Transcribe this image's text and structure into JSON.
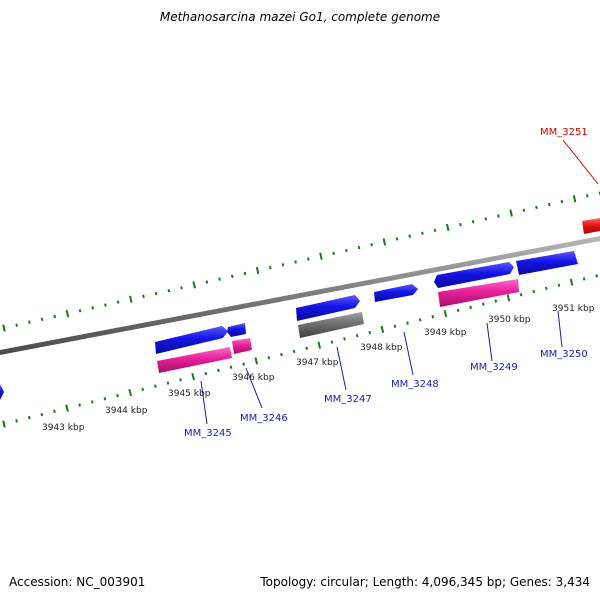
{
  "title": "Methanosarcina mazei Go1, complete genome",
  "footer": {
    "accession": "Accession: NC_003901",
    "summary": "Topology: circular; Length: 4,096,345 bp; Genes: 3,434"
  },
  "colors": {
    "backbone": "#8a8a8a",
    "tick": "#1a7a1a",
    "gene_blue": "#1414e6",
    "gene_pink": "#e8209a",
    "gene_gray": "#6e6e6e",
    "gene_red": "#e81414",
    "label_blue": "#1a1ab4",
    "label_red": "#d40000",
    "kbp_text": "#222222"
  },
  "kbp_labels": [
    "3943 kbp",
    "3944 kbp",
    "3945 kbp",
    "3946 kbp",
    "3947 kbp",
    "3948 kbp",
    "3949 kbp",
    "3950 kbp",
    "3951 kbp"
  ],
  "gene_labels": [
    {
      "text": "MM_3245",
      "color": "blue"
    },
    {
      "text": "MM_3246",
      "color": "blue"
    },
    {
      "text": "MM_3247",
      "color": "blue"
    },
    {
      "text": "MM_3248",
      "color": "blue"
    },
    {
      "text": "MM_3249",
      "color": "blue"
    },
    {
      "text": "MM_3250",
      "color": "blue"
    },
    {
      "text": "MM_3251",
      "color": "red"
    }
  ]
}
